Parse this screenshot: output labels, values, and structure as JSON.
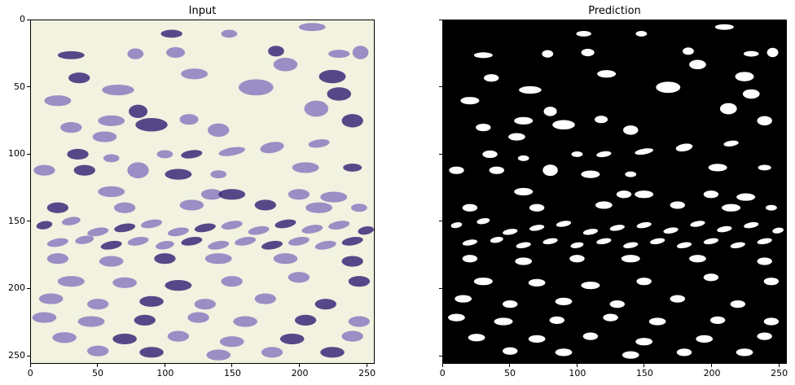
{
  "panels": {
    "input": {
      "title": "Input",
      "image_icon": "histology-tissue-image"
    },
    "prediction": {
      "title": "Prediction",
      "image_icon": "binary-segmentation-mask"
    }
  },
  "axes": {
    "x_ticks": [
      "0",
      "50",
      "100",
      "150",
      "200",
      "250"
    ],
    "y_ticks": [
      "0",
      "50",
      "100",
      "150",
      "200",
      "250"
    ],
    "range": [
      0,
      256
    ]
  },
  "colors": {
    "tissue_background": "#f1f2e0",
    "nucleus_dark": "#3b2a78",
    "nucleus_light": "#8b7cc0",
    "mask_background": "#000000",
    "mask_foreground": "#ffffff"
  }
}
